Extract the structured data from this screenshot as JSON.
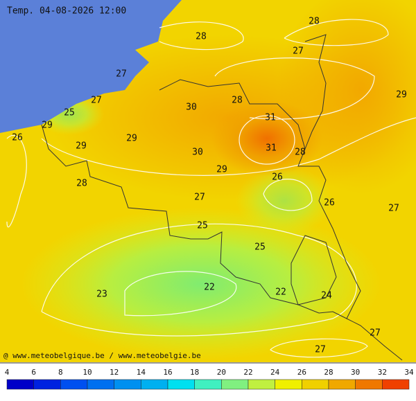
{
  "header": {
    "title": "Temp. 04-08-2026 12:00"
  },
  "labels": [
    28,
    28,
    27,
    27,
    27,
    25,
    29,
    30,
    28,
    31,
    29,
    26,
    29,
    29,
    30,
    31,
    28,
    29,
    26,
    28,
    27,
    26,
    27,
    25,
    25,
    22,
    22,
    23,
    24,
    27,
    27
  ],
  "credit": "@ www.meteobelgique.be / www.meteobelgie.be",
  "scale": {
    "ticks": [
      4,
      6,
      8,
      10,
      12,
      14,
      16,
      18,
      20,
      22,
      24,
      26,
      28,
      30,
      32,
      34
    ],
    "colors": [
      "#0000c8",
      "#0022e0",
      "#0050f0",
      "#0070f0",
      "#0090f0",
      "#00b0f0",
      "#00e0f0",
      "#40f0c0",
      "#80f080",
      "#c0f040",
      "#f0f000",
      "#f0d000",
      "#f0a800",
      "#f07800",
      "#f04000"
    ]
  }
}
